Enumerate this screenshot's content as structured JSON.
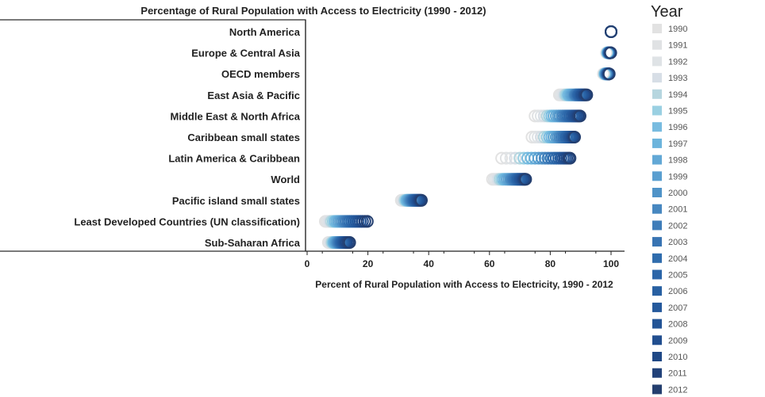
{
  "chart_data": {
    "type": "scatter",
    "title": "Percentage of Rural Population with Access to Electricity (1990 - 2012)",
    "xlabel": "Percent of Rural Population with Access to Electricity, 1990 - 2012",
    "xlim": [
      0,
      100
    ],
    "xticks": [
      0,
      20,
      40,
      60,
      80,
      100
    ],
    "legend_title": "Year",
    "legend_position": "right",
    "years": [
      1990,
      1991,
      1992,
      1993,
      1994,
      1995,
      1996,
      1997,
      1998,
      1999,
      2000,
      2001,
      2002,
      2003,
      2004,
      2005,
      2006,
      2007,
      2008,
      2009,
      2010,
      2011,
      2012
    ],
    "year_colors": [
      "#e2e2e2",
      "#e0e2e4",
      "#dfe3e6",
      "#d7dee6",
      "#b6d6df",
      "#9ad0e2",
      "#78bce0",
      "#6cb4dc",
      "#62a8d6",
      "#5a9fd0",
      "#4f93c8",
      "#4787c0",
      "#3f7db9",
      "#3874b3",
      "#2f6cad",
      "#2b65a8",
      "#2860a2",
      "#25599c",
      "#235496",
      "#214e8f",
      "#1f4886",
      "#22427a",
      "#243f6f"
    ],
    "categories": [
      "North America",
      "Europe & Central Asia",
      "OECD members",
      "East Asia & Pacific",
      "Middle East & North Africa",
      "Caribbean small states",
      "Latin America & Caribbean",
      "World",
      "Pacific island small states",
      "Least Developed Countries (UN classification)",
      "Sub-Saharan Africa"
    ],
    "series": [
      {
        "category": "North America",
        "values": [
          100,
          100,
          100,
          100,
          100,
          100,
          100,
          100,
          100,
          100,
          100,
          100,
          100,
          100,
          100,
          100,
          100,
          100,
          100,
          100,
          100,
          100,
          100
        ]
      },
      {
        "category": "Europe & Central Asia",
        "values": [
          98.5,
          98.6,
          98.6,
          98.7,
          98.8,
          98.9,
          99.0,
          99.0,
          99.1,
          99.2,
          99.2,
          99.3,
          99.4,
          99.4,
          99.5,
          99.5,
          99.6,
          99.6,
          99.7,
          99.7,
          99.8,
          99.8,
          99.9
        ]
      },
      {
        "category": "OECD members",
        "values": [
          97.5,
          97.6,
          97.7,
          97.8,
          97.9,
          98.0,
          98.1,
          98.2,
          98.3,
          98.4,
          98.5,
          98.6,
          98.7,
          98.8,
          98.9,
          99.0,
          99.0,
          99.1,
          99.2,
          99.2,
          99.3,
          99.3,
          99.4
        ]
      },
      {
        "category": "East Asia & Pacific",
        "values": [
          83,
          83.5,
          84,
          84.5,
          85,
          85.5,
          86,
          86.5,
          87,
          87.5,
          88,
          88.3,
          88.6,
          89,
          89.3,
          89.6,
          90,
          90.3,
          90.6,
          91,
          91.3,
          91.6,
          92
        ]
      },
      {
        "category": "Middle East & North Africa",
        "values": [
          75,
          76,
          77,
          78,
          79,
          79.8,
          80.5,
          81.2,
          82,
          82.7,
          83.3,
          84,
          84.6,
          85.2,
          85.8,
          86.4,
          87,
          87.5,
          88,
          88.5,
          89,
          89.4,
          89.8
        ]
      },
      {
        "category": "Caribbean small states",
        "values": [
          74,
          75,
          76,
          77,
          78,
          79,
          79.8,
          80.5,
          81.2,
          82,
          82.6,
          83.2,
          83.8,
          84.4,
          85,
          85.5,
          86,
          86.4,
          86.8,
          87.2,
          87.5,
          87.8,
          88
        ]
      },
      {
        "category": "Latin America & Caribbean",
        "values": [
          64,
          65.5,
          67,
          68.5,
          70,
          71.3,
          72.6,
          73.8,
          75,
          76.2,
          77.3,
          78.3,
          79.3,
          80.3,
          81.2,
          82,
          82.8,
          83.5,
          84.2,
          84.8,
          85.4,
          86,
          86.5
        ]
      },
      {
        "category": "World",
        "values": [
          61,
          61.6,
          62.2,
          62.8,
          63.4,
          64,
          64.6,
          65.2,
          65.8,
          66.4,
          67,
          67.5,
          68,
          68.5,
          69,
          69.4,
          69.8,
          70.2,
          70.6,
          71,
          71.3,
          71.6,
          71.9
        ]
      },
      {
        "category": "Pacific island small states",
        "values": [
          31,
          31.3,
          31.6,
          31.9,
          32.2,
          32.5,
          32.8,
          33.1,
          33.4,
          33.7,
          34,
          34.3,
          34.6,
          34.9,
          35.2,
          35.5,
          35.8,
          36.1,
          36.4,
          36.7,
          37,
          37.3,
          37.6
        ]
      },
      {
        "category": "Least Developed Countries (UN classification)",
        "values": [
          6,
          6.5,
          7,
          7.5,
          8,
          8.6,
          9.2,
          9.8,
          10.4,
          11,
          11.6,
          12.2,
          12.8,
          13.4,
          14,
          14.7,
          15.4,
          16.1,
          16.8,
          17.5,
          18.2,
          19,
          19.8
        ]
      },
      {
        "category": "Sub-Saharan Africa",
        "values": [
          7,
          7.3,
          7.6,
          7.9,
          8.2,
          8.5,
          8.8,
          9.1,
          9.4,
          9.7,
          10,
          10.3,
          10.6,
          10.9,
          11.2,
          11.5,
          11.8,
          12.1,
          12.4,
          12.7,
          13,
          13.5,
          14
        ]
      }
    ]
  }
}
